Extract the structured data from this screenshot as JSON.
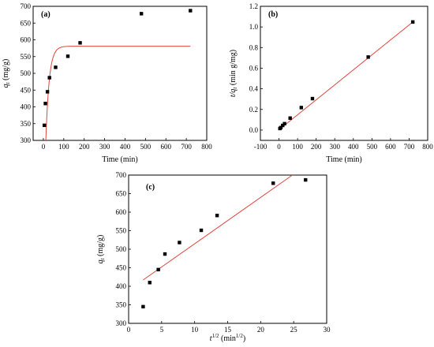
{
  "chart_data": [
    {
      "type": "scatter",
      "panel_label": "(a)",
      "xlabel": "Time (min)",
      "ylabel_main": "q",
      "ylabel_sub": "t",
      "ylabel_unit": " (mg/g)",
      "xlim": [
        -50,
        800
      ],
      "ylim": [
        300,
        700
      ],
      "xticks": [
        0,
        100,
        200,
        300,
        400,
        500,
        600,
        700,
        800
      ],
      "yticks": [
        300,
        350,
        400,
        450,
        500,
        550,
        600,
        650,
        700
      ],
      "series": [
        {
          "marker": "square",
          "color": "#000000",
          "x": [
            5,
            10,
            20,
            30,
            60,
            120,
            180,
            480,
            720
          ],
          "y": [
            345,
            410,
            445,
            487,
            518,
            551,
            591,
            678,
            687
          ]
        }
      ],
      "fit": {
        "model": "pseudo-first-order",
        "qe": 581,
        "k1": 0.06,
        "color": "#e0443c"
      }
    },
    {
      "type": "scatter",
      "panel_label": "(b)",
      "xlabel": "Time (min)",
      "ylabel_main": "t/q",
      "ylabel_sub": "t",
      "ylabel_unit": " (min g/mg)",
      "xlim": [
        -100,
        800
      ],
      "ylim": [
        -0.1,
        1.2
      ],
      "xticks": [
        -100,
        0,
        100,
        200,
        300,
        400,
        500,
        600,
        700,
        800
      ],
      "yticks": [
        0.0,
        0.2,
        0.4,
        0.6,
        0.8,
        1.0,
        1.2
      ],
      "ytick_labels": [
        "0.0",
        "0.2",
        "0.4",
        "0.6",
        "0.8",
        "1.0",
        "1.2"
      ],
      "series": [
        {
          "marker": "square",
          "color": "#000000",
          "x": [
            5,
            10,
            20,
            30,
            60,
            120,
            180,
            480,
            720
          ],
          "y": [
            0.015,
            0.024,
            0.045,
            0.062,
            0.116,
            0.218,
            0.305,
            0.708,
            1.048
          ]
        }
      ],
      "fit": {
        "model": "linear",
        "x": [
          0,
          720
        ],
        "y": [
          0.003,
          1.048
        ],
        "color": "#e0443c"
      }
    },
    {
      "type": "scatter",
      "panel_label": "(c)",
      "xlabel_main": "t",
      "xlabel_sup": "1/2",
      "xlabel_unit_pre": " (min",
      "xlabel_unit_sup": "1/2",
      "xlabel_unit_post": ")",
      "ylabel_main": "q",
      "ylabel_sub": "t",
      "ylabel_unit": " (mg/g)",
      "xlim": [
        0,
        30
      ],
      "ylim": [
        300,
        700
      ],
      "xticks": [
        0,
        5,
        10,
        15,
        20,
        25,
        30
      ],
      "yticks": [
        300,
        350,
        400,
        450,
        500,
        550,
        600,
        650,
        700
      ],
      "series": [
        {
          "marker": "square",
          "color": "#000000",
          "x": [
            2.2,
            3.2,
            4.5,
            5.5,
            7.7,
            11.0,
            13.4,
            21.9,
            26.8
          ],
          "y": [
            345,
            410,
            445,
            487,
            518,
            551,
            591,
            678,
            687
          ]
        }
      ],
      "fit": {
        "model": "linear",
        "x": [
          2.2,
          26.8
        ],
        "y": [
          417,
          725
        ],
        "color": "#e0443c"
      }
    }
  ]
}
